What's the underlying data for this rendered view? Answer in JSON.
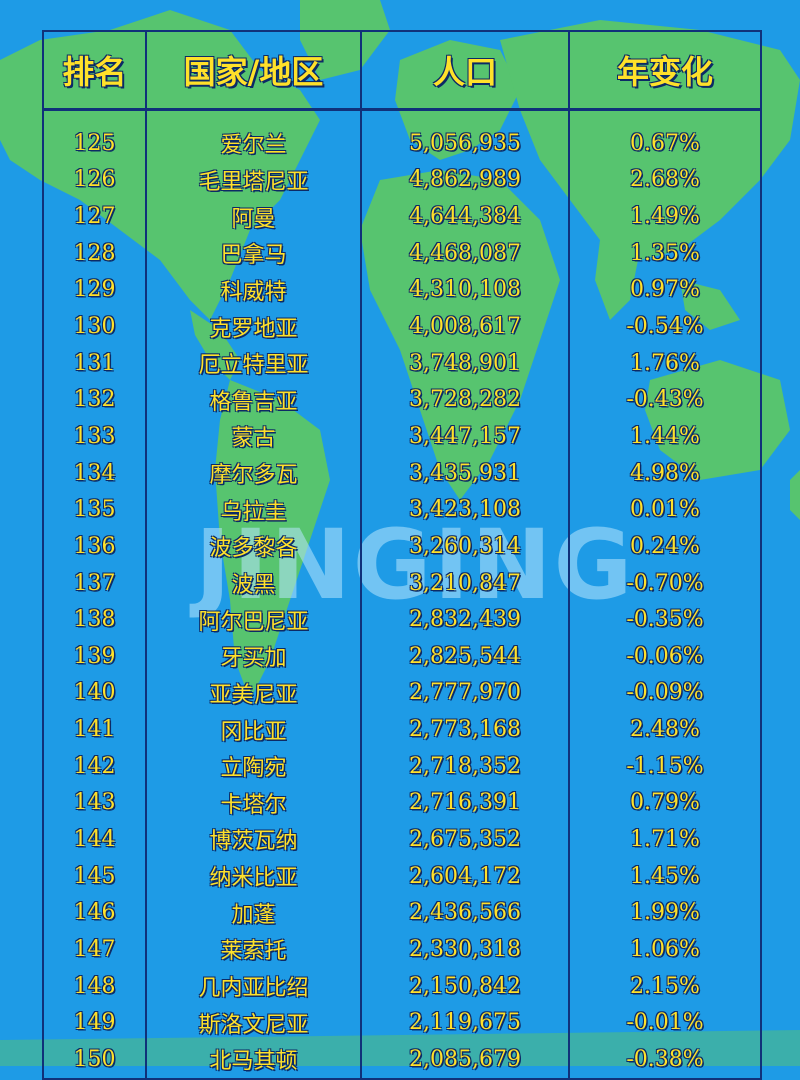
{
  "table": {
    "headers": [
      "排名",
      "国家/地区",
      "人口",
      "年变化"
    ],
    "rows": [
      [
        "125",
        "爱尔兰",
        "5,056,935",
        "0.67%"
      ],
      [
        "126",
        "毛里塔尼亚",
        "4,862,989",
        "2.68%"
      ],
      [
        "127",
        "阿曼",
        "4,644,384",
        "1.49%"
      ],
      [
        "128",
        "巴拿马",
        "4,468,087",
        "1.35%"
      ],
      [
        "129",
        "科威特",
        "4,310,108",
        "0.97%"
      ],
      [
        "130",
        "克罗地亚",
        "4,008,617",
        "-0.54%"
      ],
      [
        "131",
        "厄立特里亚",
        "3,748,901",
        "1.76%"
      ],
      [
        "132",
        "格鲁吉亚",
        "3,728,282",
        "-0.43%"
      ],
      [
        "133",
        "蒙古",
        "3,447,157",
        "1.44%"
      ],
      [
        "134",
        "摩尔多瓦",
        "3,435,931",
        "4.98%"
      ],
      [
        "135",
        "乌拉圭",
        "3,423,108",
        "0.01%"
      ],
      [
        "136",
        "波多黎各",
        "3,260,314",
        "0.24%"
      ],
      [
        "137",
        "波黑",
        "3,210,847",
        "-0.70%"
      ],
      [
        "138",
        "阿尔巴尼亚",
        "2,832,439",
        "-0.35%"
      ],
      [
        "139",
        "牙买加",
        "2,825,544",
        "-0.06%"
      ],
      [
        "140",
        "亚美尼亚",
        "2,777,970",
        "-0.09%"
      ],
      [
        "141",
        "冈比亚",
        "2,773,168",
        "2.48%"
      ],
      [
        "142",
        "立陶宛",
        "2,718,352",
        "-1.15%"
      ],
      [
        "143",
        "卡塔尔",
        "2,716,391",
        "0.79%"
      ],
      [
        "144",
        "博茨瓦纳",
        "2,675,352",
        "1.71%"
      ],
      [
        "145",
        "纳米比亚",
        "2,604,172",
        "1.45%"
      ],
      [
        "146",
        "加蓬",
        "2,436,566",
        "1.99%"
      ],
      [
        "147",
        "莱索托",
        "2,330,318",
        "1.06%"
      ],
      [
        "148",
        "几内亚比绍",
        "2,150,842",
        "2.15%"
      ],
      [
        "149",
        "斯洛文尼亚",
        "2,119,675",
        "-0.01%"
      ],
      [
        "150",
        "北马其顿",
        "2,085,679",
        "-0.38%"
      ]
    ]
  },
  "watermark": {
    "text": "JINGING"
  },
  "colors": {
    "background": "#1e9be6",
    "land": "#57c46f",
    "text": "#ffe12a",
    "border": "#10317a"
  }
}
